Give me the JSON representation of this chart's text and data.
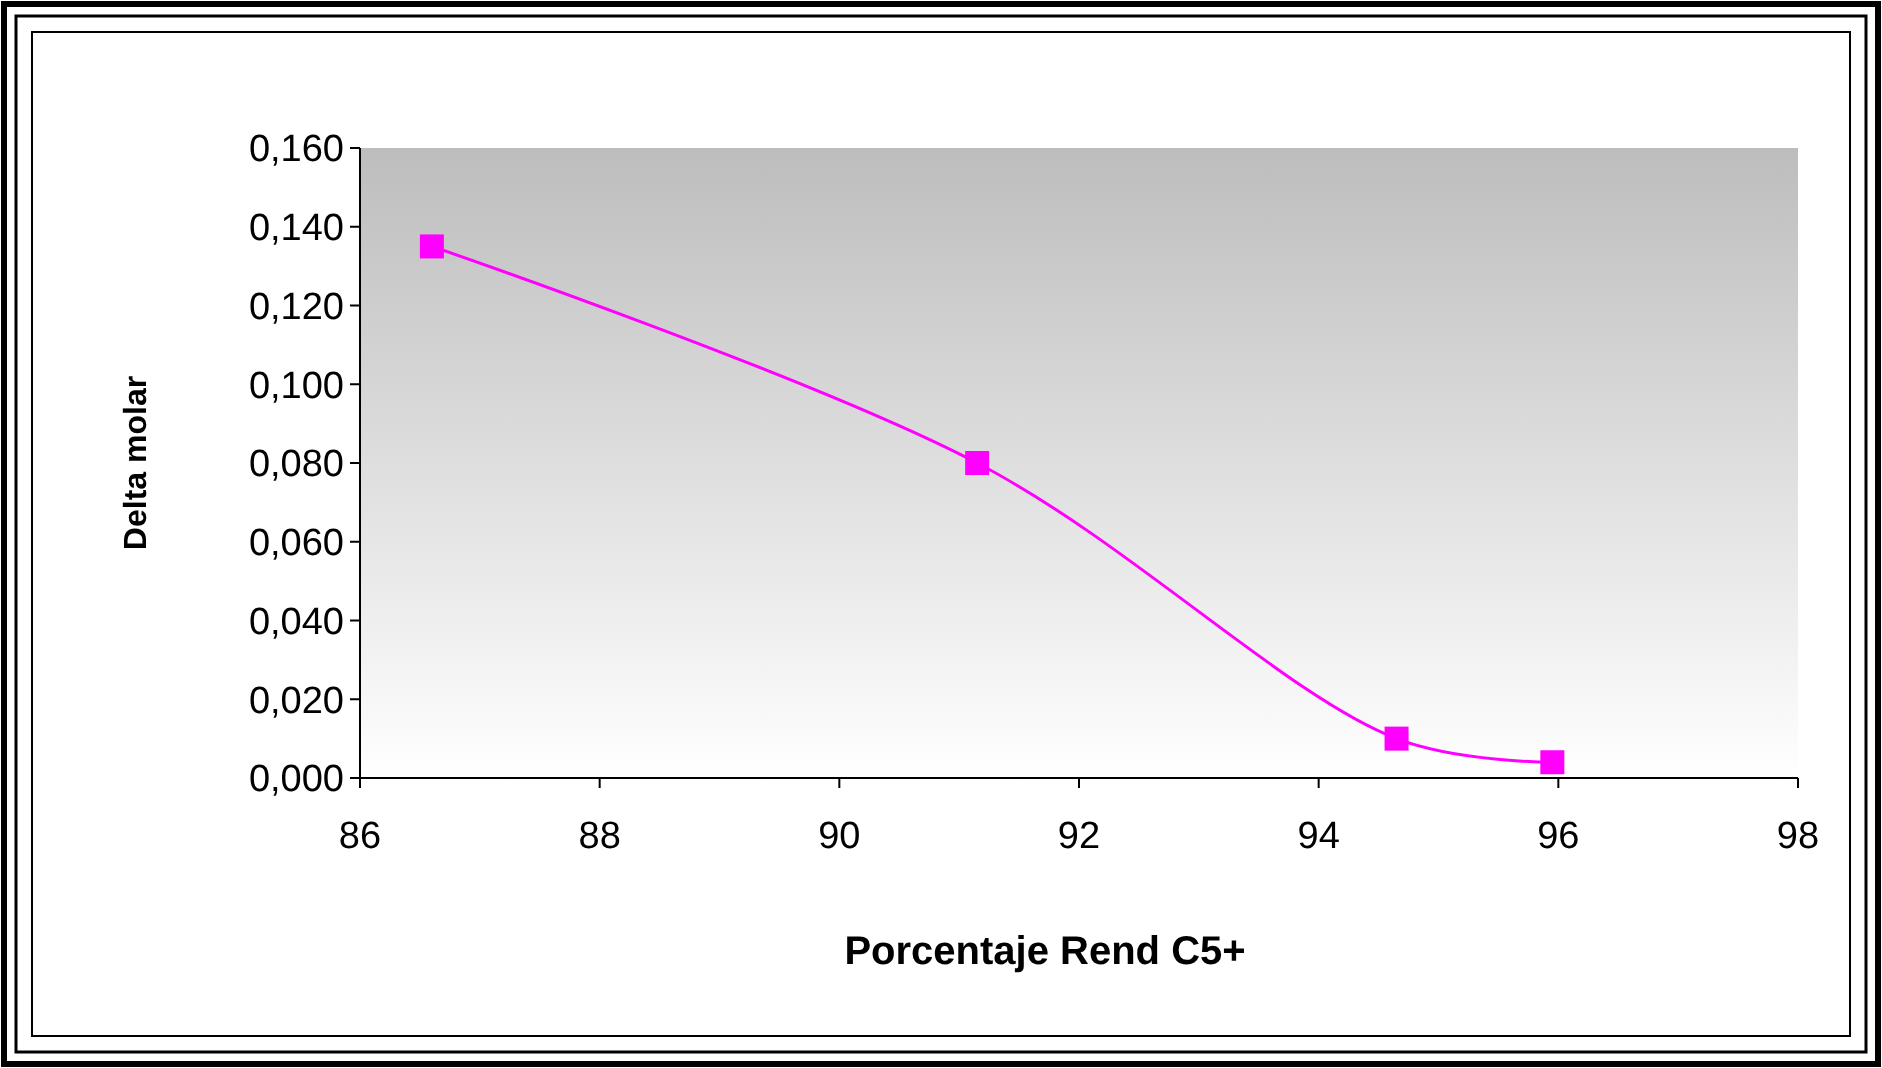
{
  "chart_data": {
    "type": "line",
    "xlabel": "Porcentaje Rend C5+",
    "ylabel": "Delta molar",
    "x": [
      86.6,
      91.15,
      94.65,
      95.95
    ],
    "series": [
      {
        "color": "#ff00ff",
        "values": [
          0.135,
          0.08,
          0.01,
          0.004
        ]
      }
    ],
    "xlim": [
      86,
      98
    ],
    "xticks": [
      86,
      88,
      90,
      92,
      94,
      96,
      98
    ],
    "ylim": [
      0,
      0.16
    ],
    "yticks": [
      {
        "value": 0,
        "label": "0,000"
      },
      {
        "value": 0.02,
        "label": "0,020"
      },
      {
        "value": 0.04,
        "label": "0,040"
      },
      {
        "value": 0.06,
        "label": "0,060"
      },
      {
        "value": 0.08,
        "label": "0,080"
      },
      {
        "value": 0.1,
        "label": "0,100"
      },
      {
        "value": 0.12,
        "label": "0,120"
      },
      {
        "value": 0.14,
        "label": "0,140"
      },
      {
        "value": 0.16,
        "label": "0,160"
      }
    ],
    "marker": "square",
    "line_style": "solid",
    "grid": false
  }
}
